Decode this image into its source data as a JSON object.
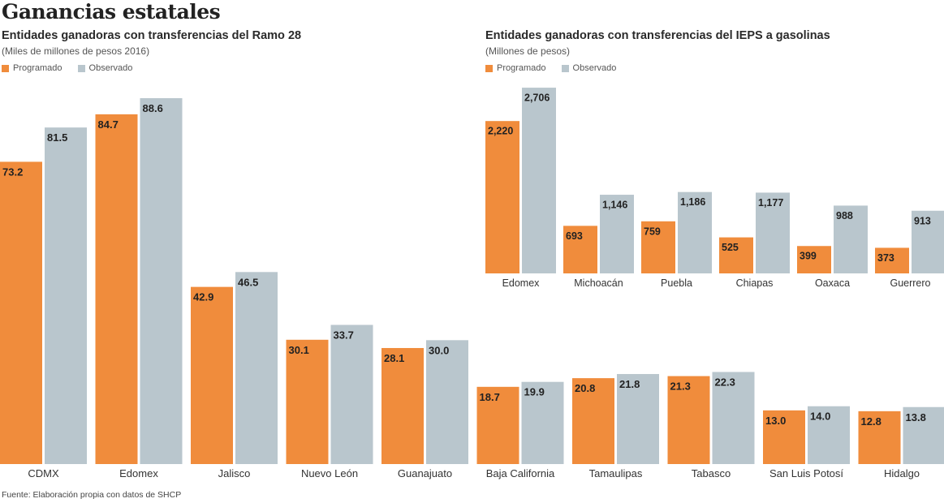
{
  "title": "Ganancias estatales",
  "footer": "Fuente: Elaboración propia con datos de SHCP",
  "colors": {
    "programado": "#f08c3c",
    "observado": "#b9c6cd"
  },
  "chart_data": [
    {
      "type": "bar",
      "title": "Entidades ganadoras con transferencias del Ramo 28",
      "subtitle": "(Miles de millones de pesos 2016)",
      "legend": [
        "Programado",
        "Observado"
      ],
      "legend_position": "top-left",
      "grid": false,
      "categories": [
        "CDMX",
        "Edomex",
        "Jalisco",
        "Nuevo León",
        "Guanajuato",
        "Baja California",
        "Tamaulipas",
        "Tabasco",
        "San Luis Potosí",
        "Hidalgo"
      ],
      "series": [
        {
          "name": "Programado",
          "values": [
            73.2,
            84.7,
            42.9,
            30.1,
            28.1,
            18.7,
            20.8,
            21.3,
            13.0,
            12.8
          ],
          "labels": [
            "73.2",
            "84.7",
            "42.9",
            "30.1",
            "28.1",
            "18.7",
            "20.8",
            "21.3",
            "13.0",
            "12.8"
          ]
        },
        {
          "name": "Observado",
          "values": [
            81.5,
            88.6,
            46.5,
            33.7,
            30.0,
            19.9,
            21.8,
            22.3,
            14.0,
            13.8
          ],
          "labels": [
            "81.5",
            "88.6",
            "46.5",
            "33.7",
            "30.0",
            "19.9",
            "21.8",
            "22.3",
            "14.0",
            "13.8"
          ]
        }
      ]
    },
    {
      "type": "bar",
      "title": "Entidades ganadoras con transferencias del IEPS a gasolinas",
      "subtitle": "(Millones de pesos)",
      "legend": [
        "Programado",
        "Observado"
      ],
      "legend_position": "top-left",
      "grid": false,
      "categories": [
        "Edomex",
        "Michoacán",
        "Puebla",
        "Chiapas",
        "Oaxaca",
        "Guerrero"
      ],
      "series": [
        {
          "name": "Programado",
          "values": [
            2220,
            693,
            759,
            525,
            399,
            373
          ],
          "labels": [
            "2,220",
            "693",
            "759",
            "525",
            "399",
            "373"
          ]
        },
        {
          "name": "Observado",
          "values": [
            2706,
            1146,
            1186,
            1177,
            988,
            913
          ],
          "labels": [
            "2,706",
            "1,146",
            "1,186",
            "1,177",
            "988",
            "913"
          ]
        }
      ]
    }
  ]
}
